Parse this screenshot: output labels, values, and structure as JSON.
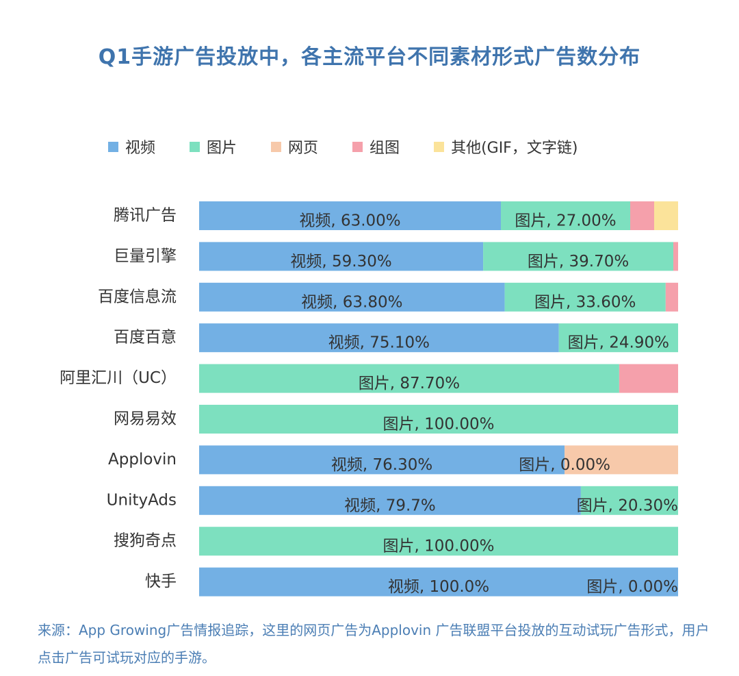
{
  "title": "Q1手游广告投放中，各主流平台不同素材形式广告数分布",
  "legend": [
    {
      "label": "视频",
      "color": "#73b0e4"
    },
    {
      "label": "图片",
      "color": "#7de0bf"
    },
    {
      "label": "网页",
      "color": "#f7c9aa"
    },
    {
      "label": "组图",
      "color": "#f5a0ab"
    },
    {
      "label": "其他(GIF，文字链)",
      "color": "#fbe39a"
    }
  ],
  "chart_data": {
    "type": "bar",
    "orientation": "horizontal",
    "stacked": true,
    "categories": [
      "腾讯广告",
      "巨量引擎",
      "百度信息流",
      "百度百意",
      "阿里汇川（UC）",
      "网易易效",
      "Applovin",
      "UnityAds",
      "搜狗奇点",
      "快手"
    ],
    "series": [
      {
        "name": "视频",
        "color": "#73b0e4",
        "values": [
          63.0,
          59.3,
          63.8,
          75.1,
          0,
          0,
          76.3,
          79.7,
          0,
          100.0
        ]
      },
      {
        "name": "图片",
        "color": "#7de0bf",
        "values": [
          27.0,
          39.7,
          33.6,
          24.9,
          87.7,
          100.0,
          0.0,
          20.3,
          100.0,
          0.0
        ]
      },
      {
        "name": "网页",
        "color": "#f7c9aa",
        "values": [
          0,
          0,
          0,
          0,
          0,
          0,
          23.7,
          0,
          0,
          0
        ]
      },
      {
        "name": "组图",
        "color": "#f5a0ab",
        "values": [
          5.0,
          1.0,
          2.6,
          0,
          12.3,
          0,
          0,
          0,
          0,
          0
        ]
      },
      {
        "name": "其他(GIF，文字链)",
        "color": "#fbe39a",
        "values": [
          5.0,
          0,
          0,
          0,
          0,
          0,
          0,
          0,
          0,
          0
        ]
      }
    ],
    "data_labels": [
      [
        {
          "series": 0,
          "text": "视频, 63.00%"
        },
        {
          "series": 1,
          "text": "图片, 27.00%"
        }
      ],
      [
        {
          "series": 0,
          "text": "视频, 59.30%"
        },
        {
          "series": 1,
          "text": "图片, 39.70%"
        }
      ],
      [
        {
          "series": 0,
          "text": "视频, 63.80%"
        },
        {
          "series": 1,
          "text": "图片, 33.60%"
        }
      ],
      [
        {
          "series": 0,
          "text": "视频, 75.10%"
        },
        {
          "series": 1,
          "text": "图片, 24.90%"
        }
      ],
      [
        {
          "series": 1,
          "text": "图片, 87.70%"
        }
      ],
      [
        {
          "series": 1,
          "text": "图片, 100.00%"
        }
      ],
      [
        {
          "series": 0,
          "text": "视频, 76.30%"
        },
        {
          "series": 1,
          "text": "图片, 0.00%"
        }
      ],
      [
        {
          "series": 0,
          "text": "视频, 79.7%"
        },
        {
          "series": 1,
          "text": "图片, 20.30%"
        }
      ],
      [
        {
          "series": 1,
          "text": "图片, 100.00%"
        }
      ],
      [
        {
          "series": 0,
          "text": "视频, 100.0%"
        },
        {
          "series": 1,
          "text": "图片, 0.00%"
        }
      ]
    ],
    "xlim": [
      0,
      100
    ],
    "grid": false,
    "legend_position": "top"
  },
  "source": "来源：App Growing广告情报追踪，这里的网页广告为Applovin 广告联盟平台投放的互动试玩广告形式，用户点击广告可试玩对应的手游。"
}
